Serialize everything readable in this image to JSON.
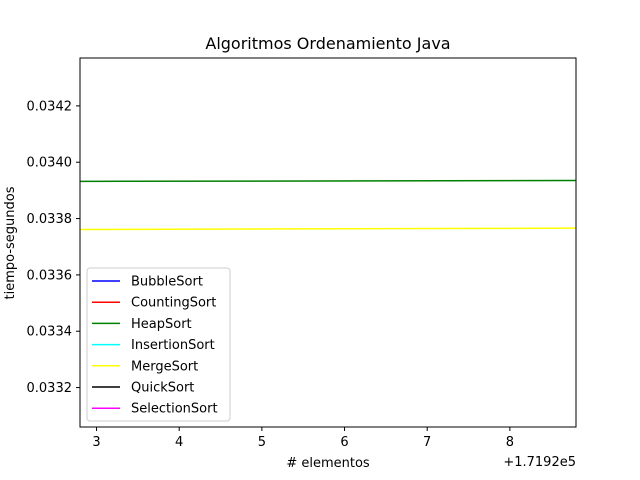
{
  "chart_data": {
    "type": "line",
    "title": "Algoritmos Ordenamiento Java",
    "xlabel": "# elementos",
    "ylabel": "tiempo-segundos",
    "x_offset_label": "+1.7192e5",
    "xlim": [
      2.8,
      8.8
    ],
    "ylim": [
      0.03306,
      0.03437
    ],
    "x_ticks": [
      3,
      4,
      5,
      6,
      7,
      8
    ],
    "y_ticks": [
      0.0332,
      0.0334,
      0.0336,
      0.0338,
      0.034,
      0.0342
    ],
    "x_tick_labels": [
      "3",
      "4",
      "5",
      "6",
      "7",
      "8"
    ],
    "y_tick_labels": [
      "0.0332",
      "0.0334",
      "0.0336",
      "0.0338",
      "0.0340",
      "0.0342"
    ],
    "grid": false,
    "legend_position": "lower-left",
    "series": [
      {
        "name": "BubbleSort",
        "color": "#0000ff",
        "x": [],
        "y": []
      },
      {
        "name": "CountingSort",
        "color": "#ff0000",
        "x": [],
        "y": []
      },
      {
        "name": "HeapSort",
        "color": "#008000",
        "x": [
          2.8,
          8.8
        ],
        "y": [
          0.033932,
          0.033935
        ]
      },
      {
        "name": "InsertionSort",
        "color": "#00ffff",
        "x": [],
        "y": []
      },
      {
        "name": "MergeSort",
        "color": "#ffff00",
        "x": [
          2.8,
          8.8
        ],
        "y": [
          0.033761,
          0.033766
        ]
      },
      {
        "name": "QuickSort",
        "color": "#000000",
        "x": [],
        "y": []
      },
      {
        "name": "SelectionSort",
        "color": "#ff00ff",
        "x": [],
        "y": []
      }
    ]
  }
}
